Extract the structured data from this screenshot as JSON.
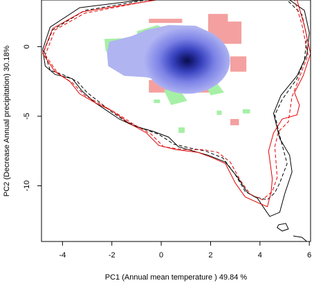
{
  "chart_data": {
    "type": "scatter",
    "xlabel": "PC1 (Annual mean temperature ) 49.84 %",
    "ylabel": "PC2 (Decrease Annual precipitation) 30.18%",
    "xlim": [
      -4.85,
      6.05
    ],
    "ylim": [
      -14.0,
      3.35
    ],
    "x_ticks": [
      -4,
      -2,
      0,
      2,
      4,
      6
    ],
    "y_ticks": [
      0,
      -5,
      -10
    ],
    "x_tick_labels": [
      "-4",
      "-2",
      "0",
      "2",
      "4",
      "6"
    ],
    "y_tick_labels": [
      "0",
      "-5",
      "-10"
    ],
    "grid": false,
    "legend": "none",
    "colors": {
      "density_peak": "#0a0f4a",
      "density_mid": "#3a44c0",
      "density_low": "#b0b4f0",
      "overlap_red": "#f4a0a0",
      "overlap_green": "#a6f0a6",
      "contour_black": "#000000",
      "contour_red": "#e00000"
    },
    "density_center": [
      1.05,
      -1.0
    ],
    "contours": [
      {
        "color": "black",
        "style": "solid",
        "points": [
          [
            -4.8,
            -0.2
          ],
          [
            -4.7,
            -1.4
          ],
          [
            -4.3,
            -2.0
          ],
          [
            -3.6,
            -2.3
          ],
          [
            -3.2,
            -3.2
          ],
          [
            -2.7,
            -4.0
          ],
          [
            -2.2,
            -4.6
          ],
          [
            -1.7,
            -5.2
          ],
          [
            -1.1,
            -5.7
          ],
          [
            -0.3,
            -6.1
          ],
          [
            0.3,
            -6.5
          ],
          [
            0.7,
            -7.2
          ],
          [
            1.3,
            -7.5
          ],
          [
            1.9,
            -7.8
          ],
          [
            2.6,
            -8.3
          ],
          [
            3.1,
            -9.4
          ],
          [
            3.5,
            -10.5
          ],
          [
            3.9,
            -10.9
          ],
          [
            4.2,
            -11.7
          ],
          [
            4.4,
            -12.2
          ],
          [
            4.8,
            -11.9
          ],
          [
            5.0,
            -10.6
          ],
          [
            5.3,
            -9.0
          ],
          [
            5.2,
            -7.8
          ],
          [
            4.8,
            -6.6
          ],
          [
            4.55,
            -4.8
          ],
          [
            4.85,
            -3.5
          ],
          [
            5.5,
            -2.1
          ],
          [
            5.9,
            -0.6
          ],
          [
            6.0,
            1.0
          ],
          [
            5.8,
            2.6
          ],
          [
            5.2,
            3.35
          ],
          [
            -0.8,
            3.35
          ],
          [
            -3.3,
            2.8
          ],
          [
            -4.5,
            1.4
          ],
          [
            -4.8,
            -0.2
          ]
        ]
      },
      {
        "color": "black",
        "style": "dashed",
        "points": [
          [
            -4.75,
            -0.3
          ],
          [
            -4.5,
            -1.7
          ],
          [
            -4.0,
            -2.0
          ],
          [
            -3.4,
            -2.5
          ],
          [
            -3.0,
            -3.3
          ],
          [
            -2.5,
            -4.0
          ],
          [
            -2.0,
            -4.7
          ],
          [
            -1.5,
            -5.3
          ],
          [
            -0.9,
            -5.8
          ],
          [
            -0.1,
            -6.3
          ],
          [
            0.5,
            -7.0
          ],
          [
            1.2,
            -7.3
          ],
          [
            1.8,
            -7.5
          ],
          [
            2.5,
            -8.0
          ],
          [
            3.0,
            -9.2
          ],
          [
            3.4,
            -10.4
          ],
          [
            3.8,
            -10.8
          ],
          [
            4.3,
            -11.0
          ],
          [
            4.6,
            -10.5
          ],
          [
            4.8,
            -9.8
          ],
          [
            5.1,
            -8.4
          ],
          [
            4.8,
            -6.4
          ],
          [
            4.6,
            -4.9
          ],
          [
            4.9,
            -3.8
          ],
          [
            5.5,
            -2.3
          ],
          [
            5.8,
            -1.0
          ],
          [
            5.9,
            0.7
          ],
          [
            5.7,
            2.3
          ],
          [
            5.1,
            3.35
          ],
          [
            -0.6,
            3.35
          ],
          [
            -3.1,
            2.6
          ],
          [
            -4.4,
            1.2
          ],
          [
            -4.75,
            -0.3
          ]
        ]
      },
      {
        "color": "red",
        "style": "solid",
        "points": [
          [
            -4.8,
            -0.5
          ],
          [
            -4.3,
            -1.8
          ],
          [
            -3.7,
            -2.5
          ],
          [
            -3.3,
            -3.4
          ],
          [
            -2.6,
            -4.1
          ],
          [
            -2.0,
            -4.6
          ],
          [
            -1.3,
            -5.5
          ],
          [
            -0.6,
            -6.2
          ],
          [
            -0.1,
            -7.1
          ],
          [
            0.6,
            -7.4
          ],
          [
            1.5,
            -7.6
          ],
          [
            2.1,
            -8.0
          ],
          [
            2.6,
            -8.4
          ],
          [
            3.0,
            -9.8
          ],
          [
            3.4,
            -10.8
          ],
          [
            3.9,
            -11.2
          ],
          [
            4.3,
            -11.5
          ],
          [
            4.45,
            -10.5
          ],
          [
            4.5,
            -9.5
          ],
          [
            4.35,
            -7.5
          ],
          [
            4.55,
            -6.2
          ],
          [
            4.9,
            -5.2
          ],
          [
            5.5,
            -4.9
          ],
          [
            5.6,
            -4.2
          ],
          [
            5.4,
            -3.3
          ],
          [
            5.75,
            -2.1
          ],
          [
            6.05,
            -0.5
          ],
          [
            5.8,
            1.5
          ],
          [
            5.5,
            3.35
          ],
          [
            -0.2,
            3.35
          ],
          [
            -3.2,
            2.5
          ],
          [
            -4.4,
            1.3
          ],
          [
            -4.8,
            -0.5
          ]
        ]
      },
      {
        "color": "red",
        "style": "dashed",
        "points": [
          [
            -4.7,
            -0.6
          ],
          [
            -4.2,
            -1.9
          ],
          [
            -3.6,
            -2.6
          ],
          [
            -3.1,
            -3.5
          ],
          [
            -2.4,
            -4.2
          ],
          [
            -1.8,
            -4.8
          ],
          [
            -1.1,
            -5.6
          ],
          [
            -0.4,
            -6.3
          ],
          [
            0.1,
            -7.2
          ],
          [
            0.9,
            -7.4
          ],
          [
            1.7,
            -7.4
          ],
          [
            2.3,
            -7.6
          ],
          [
            2.8,
            -8.3
          ],
          [
            3.2,
            -9.6
          ],
          [
            3.6,
            -10.6
          ],
          [
            4.1,
            -11.0
          ],
          [
            4.5,
            -10.4
          ],
          [
            4.7,
            -9.4
          ],
          [
            4.6,
            -7.2
          ],
          [
            4.75,
            -6.1
          ],
          [
            5.15,
            -5.4
          ],
          [
            5.3,
            -3.6
          ],
          [
            5.6,
            -2.2
          ],
          [
            5.95,
            -0.6
          ],
          [
            5.7,
            1.6
          ],
          [
            5.4,
            3.35
          ],
          [
            -0.3,
            3.35
          ],
          [
            -3.1,
            2.4
          ],
          [
            -4.3,
            1.2
          ],
          [
            -4.7,
            -0.6
          ]
        ]
      }
    ],
    "islands": [
      {
        "color": "black",
        "style": "solid",
        "points": [
          [
            4.75,
            -12.8
          ],
          [
            5.05,
            -12.7
          ],
          [
            5.15,
            -13.1
          ],
          [
            4.9,
            -13.25
          ],
          [
            4.7,
            -13.0
          ],
          [
            4.75,
            -12.8
          ]
        ]
      },
      {
        "color": "black",
        "style": "solid",
        "points": [
          [
            5.35,
            -13.6
          ],
          [
            5.7,
            -13.7
          ],
          [
            5.9,
            -14.0
          ]
        ]
      }
    ]
  }
}
